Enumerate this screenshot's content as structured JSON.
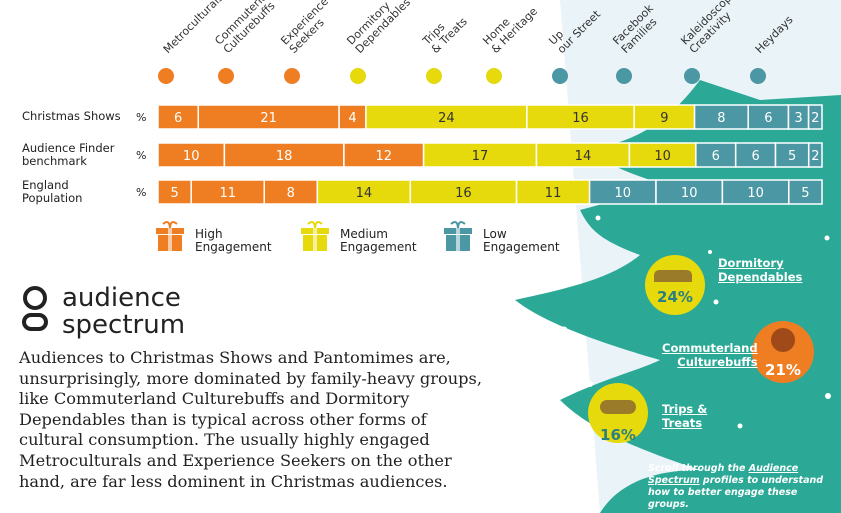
{
  "colors": {
    "high": "#ef7d22",
    "medium": "#e6d90c",
    "low": "#4b97a3",
    "tree": "#2ba996",
    "snow_bg": "#e8f2f7"
  },
  "columns": [
    {
      "name": "Metroculturals",
      "group": "high"
    },
    {
      "name": "Commuterland Culturebuffs",
      "group": "high"
    },
    {
      "name": "Experience Seekers",
      "group": "high"
    },
    {
      "name": "Dormitory Dependables",
      "group": "medium"
    },
    {
      "name": "Trips & Treats",
      "group": "medium"
    },
    {
      "name": "Home & Heritage",
      "group": "medium"
    },
    {
      "name": "Up our Street",
      "group": "low"
    },
    {
      "name": "Facebook Families",
      "group": "low"
    },
    {
      "name": "Kaleidoscope Creativity",
      "group": "low"
    },
    {
      "name": "Heydays",
      "group": "low"
    }
  ],
  "chart_data": {
    "type": "bar",
    "stacked": true,
    "orientation": "horizontal",
    "unit": "%",
    "categories": [
      "Christmas Shows",
      "Audience Finder benchmark",
      "England Population"
    ],
    "series": [
      {
        "name": "Metroculturals",
        "values": [
          6,
          10,
          5
        ]
      },
      {
        "name": "Commuterland Culturebuffs",
        "values": [
          21,
          18,
          11
        ]
      },
      {
        "name": "Experience Seekers",
        "values": [
          4,
          12,
          8
        ]
      },
      {
        "name": "Dormitory Dependables",
        "values": [
          24,
          17,
          14
        ]
      },
      {
        "name": "Trips & Treats",
        "values": [
          16,
          14,
          16
        ]
      },
      {
        "name": "Home & Heritage",
        "values": [
          9,
          10,
          11
        ]
      },
      {
        "name": "Up our Street",
        "values": [
          8,
          6,
          10
        ]
      },
      {
        "name": "Facebook Families",
        "values": [
          6,
          6,
          10
        ]
      },
      {
        "name": "Kaleidoscope Creativity",
        "values": [
          3,
          5,
          10
        ]
      },
      {
        "name": "Heydays",
        "values": [
          2,
          2,
          5
        ]
      }
    ],
    "row_labels": [
      [
        "Christmas Shows"
      ],
      [
        "Audience Finder",
        "benchmark"
      ],
      [
        "England",
        "Population"
      ]
    ]
  },
  "legend": [
    {
      "group": "high",
      "lines": [
        "High",
        "Engagement"
      ]
    },
    {
      "group": "medium",
      "lines": [
        "Medium",
        "Engagement"
      ]
    },
    {
      "group": "low",
      "lines": [
        "Low",
        "Engagement"
      ]
    }
  ],
  "brand": {
    "line1": "audience",
    "line2": "spectrum"
  },
  "body_text": "Audiences to Christmas Shows and Pantomimes are, unsurprisingly, more dominated by family-heavy groups, like Commuterland Culturebuffs and Dormitory Dependables than is typical across other forms of cultural consumption. The usually highly engaged Metroculturals and Experience Seekers on the other hand, are far less dominent in Christmas audiences.",
  "callouts": [
    {
      "lines": [
        "Dormitory",
        "Dependables"
      ],
      "pct": "24%",
      "group": "medium"
    },
    {
      "lines": [
        "Commuterland",
        "Culturebuffs"
      ],
      "pct": "21%",
      "group": "high"
    },
    {
      "lines": [
        "Trips &",
        "Treats"
      ],
      "pct": "16%",
      "group": "medium"
    }
  ],
  "footnote": {
    "pre": "Scroll through the ",
    "link": "Audience Spectrum",
    "post": " profiles to understand how to better engage these groups."
  }
}
